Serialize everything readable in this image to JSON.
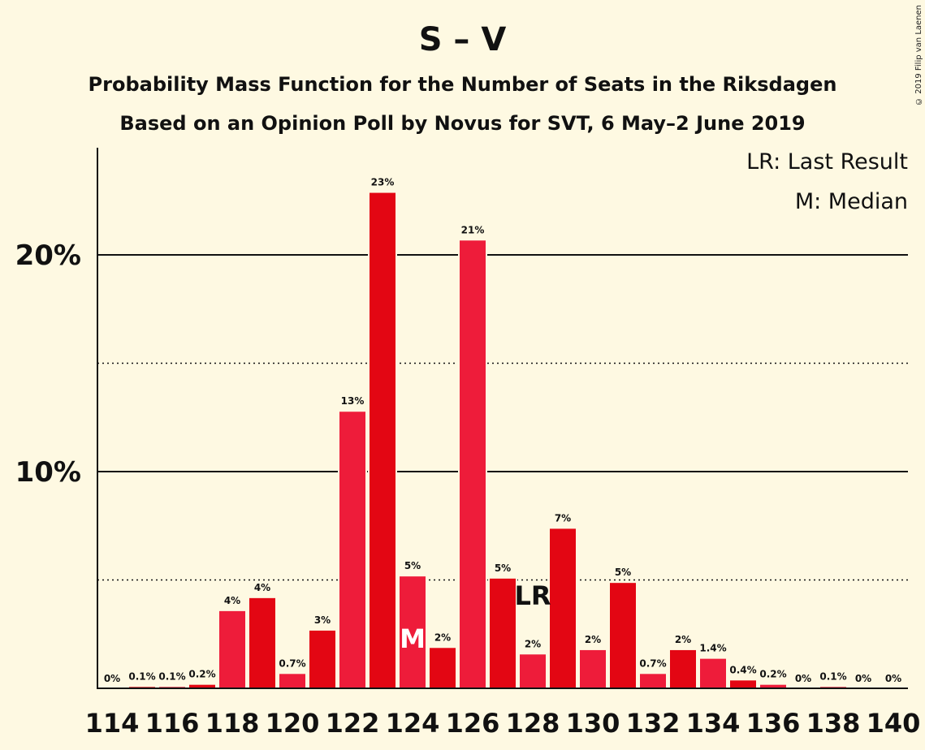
{
  "header": {
    "title": "S – V",
    "subtitle1": "Probability Mass Function for the Number of Seats in the Riksdagen",
    "subtitle2": "Based on an Opinion Poll by Novus for SVT, 6 May–2 June 2019",
    "copyright": "© 2019 Filip van Laenen"
  },
  "legend": {
    "lr": "LR: Last Result",
    "m": "M: Median"
  },
  "colors": {
    "background": "#fef9e2",
    "bar_dark": "#e30613",
    "bar_light": "#ee1c3a",
    "text": "#111111"
  },
  "chart_data": {
    "type": "bar",
    "x": [
      114,
      115,
      116,
      117,
      118,
      119,
      120,
      121,
      122,
      123,
      124,
      125,
      126,
      127,
      128,
      129,
      130,
      131,
      132,
      133,
      134,
      135,
      136,
      137,
      138,
      139,
      140
    ],
    "values": [
      0,
      0.1,
      0.1,
      0.2,
      3.6,
      4.2,
      0.7,
      2.7,
      12.8,
      22.9,
      5.2,
      1.9,
      20.7,
      5.1,
      1.6,
      7.4,
      1.8,
      4.9,
      0.7,
      1.8,
      1.4,
      0.4,
      0.2,
      0,
      0.1,
      0,
      0
    ],
    "value_labels": [
      "0%",
      "0.1%",
      "0.1%",
      "0.2%",
      "4%",
      "4%",
      "0.7%",
      "3%",
      "13%",
      "23%",
      "5%",
      "2%",
      "21%",
      "5%",
      "2%",
      "7%",
      "2%",
      "5%",
      "0.7%",
      "2%",
      "1.4%",
      "0.4%",
      "0.2%",
      "0%",
      "0.1%",
      "0%",
      "0%"
    ],
    "x_tick_labels": [
      "114",
      "116",
      "118",
      "120",
      "122",
      "124",
      "126",
      "128",
      "130",
      "132",
      "134",
      "136",
      "138",
      "140"
    ],
    "y_tick_labels": [
      "10%",
      "20%"
    ],
    "ylim": [
      0,
      25
    ],
    "grid": {
      "solid": [
        10,
        20
      ],
      "dotted": [
        5,
        15
      ]
    },
    "median_seat": 124,
    "median_label": "M",
    "last_result_seat": 128,
    "last_result_label": "LR"
  }
}
